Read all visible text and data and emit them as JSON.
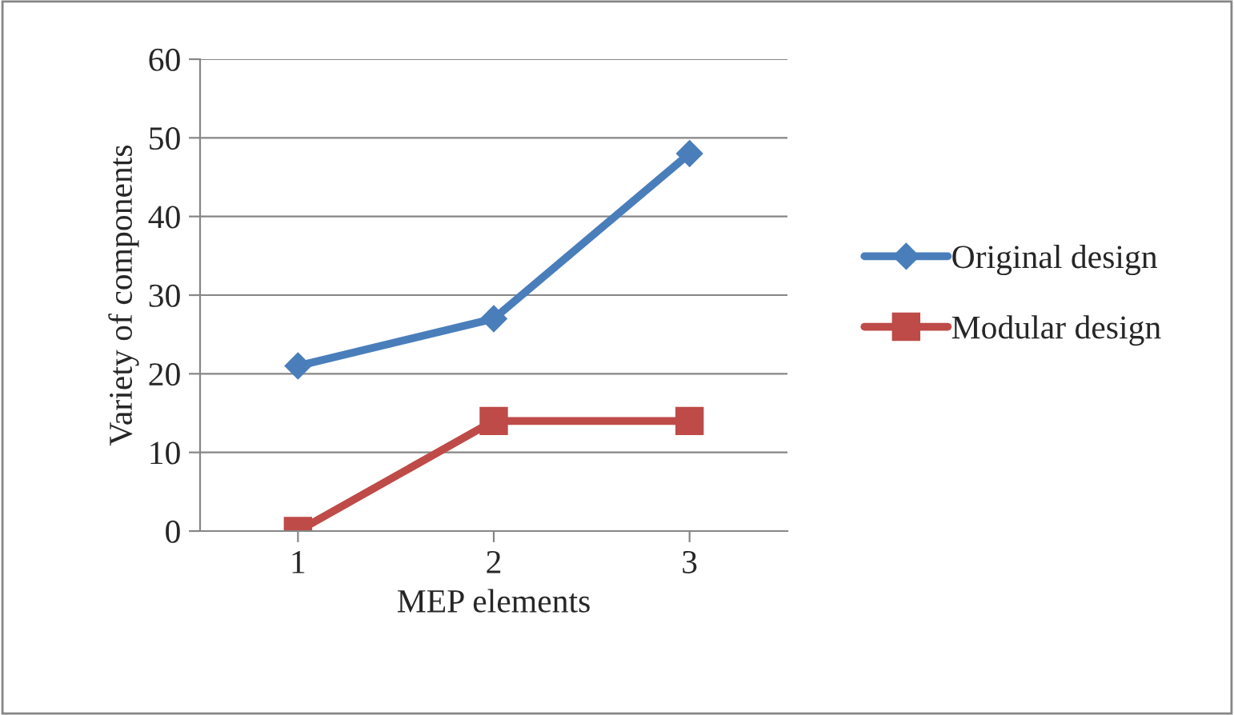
{
  "chart_data": {
    "type": "line",
    "xlabel": "MEP elements",
    "ylabel": "Variety of components",
    "categories": [
      "1",
      "2",
      "3"
    ],
    "series": [
      {
        "name": "Original design",
        "color": "#4a7ebb",
        "values": [
          21,
          27,
          48
        ],
        "marker": "diamond"
      },
      {
        "name": "Modular design",
        "color": "#be4b48",
        "values": [
          0,
          14,
          14
        ],
        "marker": "square"
      }
    ],
    "ylim": [
      0,
      60
    ],
    "yticks": [
      0,
      10,
      20,
      30,
      40,
      50,
      60
    ],
    "grid": "y",
    "legend": "right",
    "line_style": "solid"
  }
}
